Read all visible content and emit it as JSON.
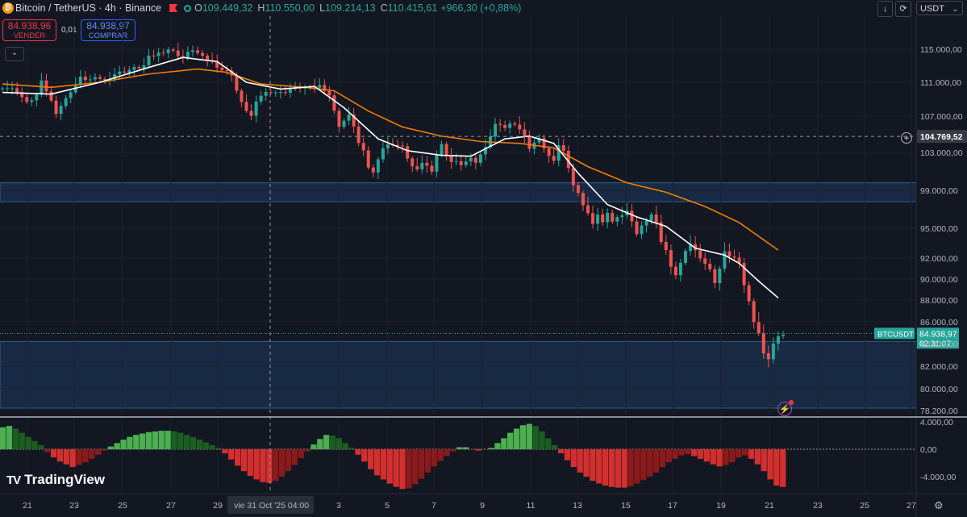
{
  "header": {
    "symbol": "Bitcoin / TetherUS · 4h · Binance",
    "open_label": "O",
    "open": "109.449,32",
    "high_label": "H",
    "high": "110.550,00",
    "low_label": "L",
    "low": "109.214,13",
    "close_label": "C",
    "close": "110.415,61",
    "change": "+966,30 (+0,88%)"
  },
  "trade": {
    "sell_price": "84.938,96",
    "sell_label": "VENDER",
    "spread": "0,01",
    "buy_price": "84.938,97",
    "buy_label": "COMPRAR"
  },
  "toolbar": {
    "currency": "USDT"
  },
  "branding": {
    "name": "TradingView"
  },
  "colors": {
    "bg": "#131722",
    "up": "#26a69a",
    "down": "#ef5350",
    "ema_fast": "#ffffff",
    "ema_slow": "#f57c00",
    "zone": "#1e3a5f"
  },
  "chart_data": {
    "type": "candlestick",
    "symbol": "BTCUSDT",
    "timeframe": "4h",
    "exchange": "Binance",
    "x_labels": [
      "21",
      "23",
      "25",
      "27",
      "29",
      "vie 31 Oct '25",
      "04:00",
      "3",
      "5",
      "7",
      "9",
      "11",
      "13",
      "15",
      "17",
      "19",
      "21",
      "23",
      "25",
      "27"
    ],
    "y_ticks": [
      "115.000,00",
      "111.000,00",
      "107.000,00",
      "103.000,00",
      "99.000,00",
      "95.000,00",
      "92.000,00",
      "90.000,00",
      "88.000,00",
      "86.000,00",
      "84.000,00",
      "82.000,00",
      "80.000,00",
      "78.200,00"
    ],
    "crosshair_price": "104.769,52",
    "last_price_tag": "BTCUSDT",
    "last_price": "84.938,97",
    "countdown": "02:31:07",
    "zones": [
      {
        "from": 97800,
        "to": 99800
      },
      {
        "from": 78400,
        "to": 84200
      }
    ],
    "close_path": [
      {
        "x": 0,
        "y": 110500
      },
      {
        "x": 3,
        "y": 110000
      },
      {
        "x": 5,
        "y": 108500
      },
      {
        "x": 7,
        "y": 109500
      },
      {
        "x": 8,
        "y": 111000
      },
      {
        "x": 9,
        "y": 110000
      },
      {
        "x": 11,
        "y": 107500
      },
      {
        "x": 13,
        "y": 109000
      },
      {
        "x": 14,
        "y": 110000
      },
      {
        "x": 16,
        "y": 111500
      },
      {
        "x": 18,
        "y": 111300
      },
      {
        "x": 20,
        "y": 111500
      },
      {
        "x": 21,
        "y": 111200
      },
      {
        "x": 23,
        "y": 112000
      },
      {
        "x": 26,
        "y": 112500
      },
      {
        "x": 29,
        "y": 113000
      },
      {
        "x": 30,
        "y": 114000
      },
      {
        "x": 32,
        "y": 114500
      },
      {
        "x": 34,
        "y": 115000
      },
      {
        "x": 35,
        "y": 114700
      },
      {
        "x": 37,
        "y": 114000
      },
      {
        "x": 39,
        "y": 115000
      },
      {
        "x": 41,
        "y": 114000
      },
      {
        "x": 43,
        "y": 113500
      },
      {
        "x": 45,
        "y": 112500
      },
      {
        "x": 47,
        "y": 112000
      },
      {
        "x": 48,
        "y": 110000
      },
      {
        "x": 49,
        "y": 108500
      },
      {
        "x": 51,
        "y": 107000
      },
      {
        "x": 52,
        "y": 108500
      },
      {
        "x": 53,
        "y": 109500
      },
      {
        "x": 55,
        "y": 110000
      },
      {
        "x": 57,
        "y": 109700
      },
      {
        "x": 59,
        "y": 110200
      },
      {
        "x": 61,
        "y": 110400
      },
      {
        "x": 63,
        "y": 110300
      },
      {
        "x": 65,
        "y": 110600
      },
      {
        "x": 66,
        "y": 110200
      },
      {
        "x": 67,
        "y": 109500
      },
      {
        "x": 68,
        "y": 107500
      },
      {
        "x": 69,
        "y": 106000
      },
      {
        "x": 71,
        "y": 107000
      },
      {
        "x": 72,
        "y": 106000
      },
      {
        "x": 73,
        "y": 104000
      },
      {
        "x": 74,
        "y": 103000
      },
      {
        "x": 75,
        "y": 101500
      },
      {
        "x": 76,
        "y": 100800
      },
      {
        "x": 77,
        "y": 102500
      },
      {
        "x": 78,
        "y": 103500
      },
      {
        "x": 80,
        "y": 104000
      },
      {
        "x": 82,
        "y": 103500
      },
      {
        "x": 83,
        "y": 102500
      },
      {
        "x": 84,
        "y": 101500
      },
      {
        "x": 85,
        "y": 101000
      },
      {
        "x": 86,
        "y": 102000
      },
      {
        "x": 87,
        "y": 101500
      },
      {
        "x": 88,
        "y": 101200
      },
      {
        "x": 89,
        "y": 102800
      },
      {
        "x": 90,
        "y": 103800
      },
      {
        "x": 91,
        "y": 102800
      },
      {
        "x": 92,
        "y": 102000
      },
      {
        "x": 94,
        "y": 101800
      },
      {
        "x": 96,
        "y": 102200
      },
      {
        "x": 97,
        "y": 102000
      },
      {
        "x": 98,
        "y": 102700
      },
      {
        "x": 99,
        "y": 103800
      },
      {
        "x": 100,
        "y": 104800
      },
      {
        "x": 101,
        "y": 106000
      },
      {
        "x": 102,
        "y": 106200
      },
      {
        "x": 103,
        "y": 105700
      },
      {
        "x": 104,
        "y": 106000
      },
      {
        "x": 105,
        "y": 106200
      },
      {
        "x": 106,
        "y": 105500
      },
      {
        "x": 107,
        "y": 104500
      },
      {
        "x": 108,
        "y": 103500
      },
      {
        "x": 109,
        "y": 104000
      },
      {
        "x": 110,
        "y": 104800
      },
      {
        "x": 111,
        "y": 103500
      },
      {
        "x": 112,
        "y": 102500
      },
      {
        "x": 113,
        "y": 102300
      },
      {
        "x": 114,
        "y": 103800
      },
      {
        "x": 115,
        "y": 103000
      },
      {
        "x": 116,
        "y": 101500
      },
      {
        "x": 117,
        "y": 99500
      },
      {
        "x": 118,
        "y": 98500
      },
      {
        "x": 119,
        "y": 97500
      },
      {
        "x": 120,
        "y": 96500
      },
      {
        "x": 121,
        "y": 95700
      },
      {
        "x": 122,
        "y": 96500
      },
      {
        "x": 123,
        "y": 95500
      },
      {
        "x": 124,
        "y": 96800
      },
      {
        "x": 125,
        "y": 95700
      },
      {
        "x": 126,
        "y": 96000
      },
      {
        "x": 127,
        "y": 96500
      },
      {
        "x": 128,
        "y": 96800
      },
      {
        "x": 129,
        "y": 95500
      },
      {
        "x": 130,
        "y": 94500
      },
      {
        "x": 131,
        "y": 95200
      },
      {
        "x": 132,
        "y": 96000
      },
      {
        "x": 133,
        "y": 96500
      },
      {
        "x": 134,
        "y": 95500
      },
      {
        "x": 135,
        "y": 93800
      },
      {
        "x": 136,
        "y": 92800
      },
      {
        "x": 137,
        "y": 91000
      },
      {
        "x": 138,
        "y": 90500
      },
      {
        "x": 139,
        "y": 91500
      },
      {
        "x": 140,
        "y": 92500
      },
      {
        "x": 141,
        "y": 93500
      },
      {
        "x": 142,
        "y": 92700
      },
      {
        "x": 143,
        "y": 92200
      },
      {
        "x": 144,
        "y": 91500
      },
      {
        "x": 145,
        "y": 90800
      },
      {
        "x": 146,
        "y": 89800
      },
      {
        "x": 147,
        "y": 91000
      },
      {
        "x": 148,
        "y": 92500
      },
      {
        "x": 149,
        "y": 92300
      },
      {
        "x": 150,
        "y": 92000
      },
      {
        "x": 151,
        "y": 91300
      },
      {
        "x": 152,
        "y": 89500
      },
      {
        "x": 153,
        "y": 87800
      },
      {
        "x": 154,
        "y": 86200
      },
      {
        "x": 155,
        "y": 85000
      },
      {
        "x": 156,
        "y": 83000
      },
      {
        "x": 157,
        "y": 82800
      },
      {
        "x": 158,
        "y": 84000
      },
      {
        "x": 159,
        "y": 84500
      },
      {
        "x": 160,
        "y": 84939
      }
    ],
    "ema_fast": [
      {
        "x": 0,
        "y": 109800
      },
      {
        "x": 10,
        "y": 109600
      },
      {
        "x": 20,
        "y": 111000
      },
      {
        "x": 30,
        "y": 112800
      },
      {
        "x": 37,
        "y": 114000
      },
      {
        "x": 44,
        "y": 113500
      },
      {
        "x": 50,
        "y": 111000
      },
      {
        "x": 57,
        "y": 110200
      },
      {
        "x": 64,
        "y": 110500
      },
      {
        "x": 70,
        "y": 108000
      },
      {
        "x": 77,
        "y": 104500
      },
      {
        "x": 83,
        "y": 103200
      },
      {
        "x": 90,
        "y": 102700
      },
      {
        "x": 96,
        "y": 102600
      },
      {
        "x": 103,
        "y": 104500
      },
      {
        "x": 108,
        "y": 104800
      },
      {
        "x": 113,
        "y": 104000
      },
      {
        "x": 118,
        "y": 100800
      },
      {
        "x": 124,
        "y": 97500
      },
      {
        "x": 130,
        "y": 96200
      },
      {
        "x": 136,
        "y": 95200
      },
      {
        "x": 142,
        "y": 93000
      },
      {
        "x": 148,
        "y": 92300
      },
      {
        "x": 151,
        "y": 91500
      },
      {
        "x": 155,
        "y": 89800
      },
      {
        "x": 159,
        "y": 88200
      }
    ],
    "ema_slow": [
      {
        "x": 0,
        "y": 110800
      },
      {
        "x": 10,
        "y": 110400
      },
      {
        "x": 20,
        "y": 111000
      },
      {
        "x": 30,
        "y": 112000
      },
      {
        "x": 40,
        "y": 112600
      },
      {
        "x": 46,
        "y": 112200
      },
      {
        "x": 53,
        "y": 110800
      },
      {
        "x": 62,
        "y": 110400
      },
      {
        "x": 68,
        "y": 110000
      },
      {
        "x": 75,
        "y": 107600
      },
      {
        "x": 82,
        "y": 105800
      },
      {
        "x": 90,
        "y": 104800
      },
      {
        "x": 98,
        "y": 104200
      },
      {
        "x": 106,
        "y": 104000
      },
      {
        "x": 113,
        "y": 103500
      },
      {
        "x": 120,
        "y": 101500
      },
      {
        "x": 128,
        "y": 99800
      },
      {
        "x": 136,
        "y": 98800
      },
      {
        "x": 144,
        "y": 97300
      },
      {
        "x": 151,
        "y": 95600
      },
      {
        "x": 159,
        "y": 92800
      }
    ],
    "oscillator": {
      "y_ticks": [
        "4.000,00",
        "0,00",
        "-4.000,00"
      ],
      "values": [
        3.2,
        3.4,
        3.0,
        2.4,
        1.8,
        1.2,
        0.6,
        -0.4,
        -1.2,
        -1.8,
        -2.2,
        -2.6,
        -2.3,
        -1.9,
        -1.4,
        -0.8,
        -0.2,
        0.4,
        0.9,
        1.4,
        1.8,
        2.1,
        2.3,
        2.5,
        2.6,
        2.7,
        2.7,
        2.6,
        2.4,
        2.1,
        1.8,
        1.4,
        1.0,
        0.6,
        0.2,
        -0.6,
        -1.5,
        -2.4,
        -3.2,
        -3.9,
        -4.4,
        -4.8,
        -4.9,
        -4.6,
        -4.0,
        -3.2,
        -2.3,
        -1.3,
        -0.3,
        0.7,
        1.5,
        2.1,
        2.0,
        1.6,
        0.9,
        0.2,
        -0.8,
        -1.8,
        -2.9,
        -3.8,
        -4.4,
        -5.0,
        -5.5,
        -5.8,
        -5.7,
        -5.1,
        -4.3,
        -3.4,
        -2.5,
        -1.7,
        -1.0,
        -0.3,
        0.3,
        0.3,
        -0.1,
        -0.2,
        0.0,
        0.2,
        0.9,
        1.6,
        2.4,
        3.0,
        3.5,
        3.7,
        3.4,
        2.6,
        1.6,
        0.6,
        -0.6,
        -1.6,
        -2.6,
        -3.4,
        -4.0,
        -4.6,
        -5.0,
        -5.3,
        -5.5,
        -5.6,
        -5.6,
        -5.4,
        -5.0,
        -4.5,
        -4.0,
        -3.4,
        -2.6,
        -1.9,
        -1.4,
        -0.9,
        -0.7,
        -1.0,
        -1.4,
        -1.8,
        -2.2,
        -2.5,
        -2.3,
        -1.9,
        -1.2,
        -0.9,
        -1.4,
        -2.2,
        -3.2,
        -4.4,
        -5.3,
        -5.5
      ]
    }
  }
}
